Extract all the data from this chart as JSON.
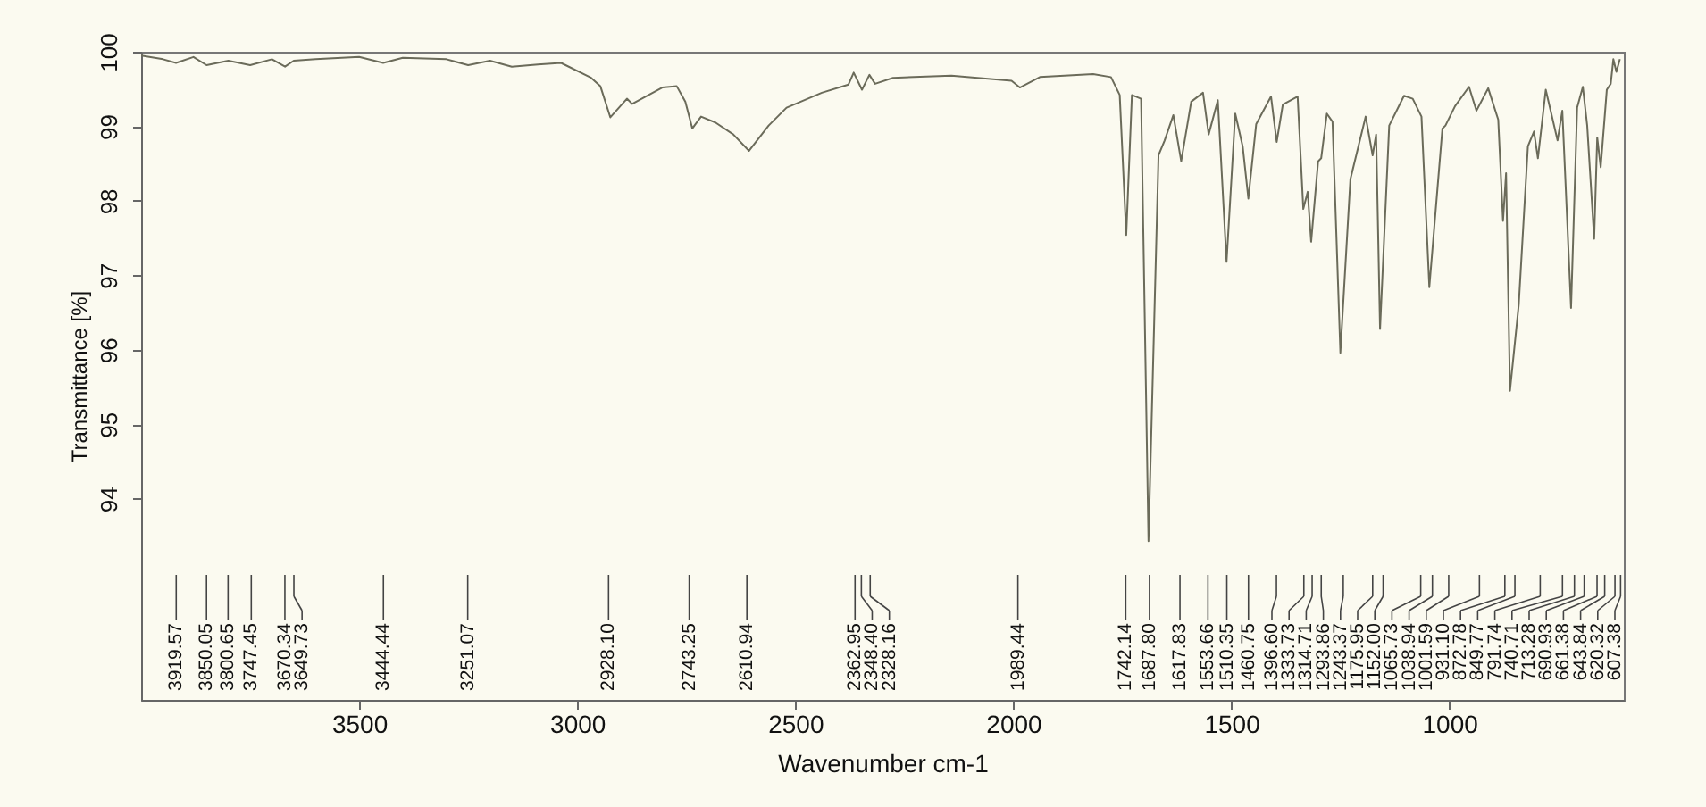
{
  "chart_data": {
    "type": "line",
    "xlabel": "Wavenumber cm-1",
    "ylabel": "Transmittance [%]",
    "xlim": [
      4000,
      600
    ],
    "ylim": [
      91.3,
      100
    ],
    "xticks": [
      3500,
      3000,
      2500,
      2000,
      1500,
      1000
    ],
    "yticks": [
      94,
      95,
      96,
      97,
      98,
      99,
      100
    ],
    "color": "#6b6b5a",
    "x": [
      4000,
      3950,
      3920,
      3880,
      3850,
      3800,
      3750,
      3700,
      3670,
      3650,
      3600,
      3500,
      3445,
      3400,
      3300,
      3250,
      3200,
      3150,
      3090,
      3037,
      2968,
      2947,
      2924,
      2886,
      2874,
      2805,
      2772,
      2752,
      2736,
      2716,
      2683,
      2642,
      2606,
      2561,
      2520,
      2439,
      2378,
      2366,
      2347,
      2330,
      2317,
      2276,
      2142,
      2004,
      1985,
      1939,
      1817,
      1776,
      1756,
      1741,
      1728,
      1707,
      1690,
      1667,
      1653,
      1633,
      1615,
      1592,
      1565,
      1552,
      1531,
      1511,
      1491,
      1474,
      1461,
      1443,
      1409,
      1396,
      1382,
      1348,
      1335,
      1325,
      1317,
      1301,
      1294,
      1281,
      1268,
      1250,
      1227,
      1192,
      1176,
      1168,
      1159,
      1138,
      1104,
      1084,
      1064,
      1046,
      1016,
      1009,
      987,
      955,
      938,
      911,
      888,
      877,
      870,
      861,
      841,
      820,
      806,
      797,
      779,
      752,
      741,
      721,
      707,
      694,
      684,
      668,
      661,
      653,
      639,
      630,
      624,
      617,
      609
    ],
    "values": [
      99.95,
      99.9,
      99.85,
      99.93,
      99.82,
      99.88,
      99.82,
      99.9,
      99.8,
      99.88,
      99.9,
      99.93,
      99.85,
      99.92,
      99.9,
      99.82,
      99.88,
      99.8,
      99.83,
      99.85,
      99.65,
      99.54,
      99.12,
      99.37,
      99.3,
      99.52,
      99.54,
      99.33,
      98.97,
      99.13,
      99.05,
      98.89,
      98.67,
      99.01,
      99.25,
      99.45,
      99.56,
      99.72,
      99.49,
      99.69,
      99.57,
      99.65,
      99.68,
      99.61,
      99.52,
      99.66,
      99.7,
      99.66,
      99.42,
      97.54,
      99.42,
      99.37,
      93.43,
      98.61,
      98.81,
      99.15,
      98.53,
      99.33,
      99.45,
      98.89,
      99.35,
      97.18,
      99.17,
      98.73,
      98.03,
      99.03,
      99.4,
      98.79,
      99.29,
      99.4,
      97.89,
      98.12,
      97.45,
      98.53,
      98.57,
      99.17,
      99.06,
      95.96,
      98.29,
      99.13,
      98.61,
      98.89,
      96.28,
      99.01,
      99.41,
      99.37,
      99.13,
      96.84,
      98.97,
      99.01,
      99.27,
      99.53,
      99.21,
      99.51,
      99.09,
      97.73,
      98.37,
      95.45,
      96.6,
      98.73,
      98.93,
      98.57,
      99.49,
      98.81,
      99.21,
      96.56,
      99.25,
      99.53,
      99.01,
      97.49,
      98.85,
      98.45,
      99.49,
      99.57,
      99.9,
      99.73,
      99.9
    ],
    "annotations": [
      {
        "text": "3919.57",
        "x": 3919.57
      },
      {
        "text": "3850.05",
        "x": 3850.05
      },
      {
        "text": "3800.65",
        "x": 3800.65
      },
      {
        "text": "3747.45",
        "x": 3747.45
      },
      {
        "text": "3670.34",
        "x": 3670.34
      },
      {
        "text": "3649.73",
        "x": 3649.73
      },
      {
        "text": "3444.44",
        "x": 3444.44
      },
      {
        "text": "3251.07",
        "x": 3251.07
      },
      {
        "text": "2928.10",
        "x": 2928.1
      },
      {
        "text": "2743.25",
        "x": 2743.25
      },
      {
        "text": "2610.94",
        "x": 2610.94
      },
      {
        "text": "2362.95",
        "x": 2362.95
      },
      {
        "text": "2348.40",
        "x": 2348.4
      },
      {
        "text": "2328.16",
        "x": 2328.16
      },
      {
        "text": "1989.44",
        "x": 1989.44
      },
      {
        "text": "1742.14",
        "x": 1742.14
      },
      {
        "text": "1687.80",
        "x": 1687.8
      },
      {
        "text": "1617.83",
        "x": 1617.83
      },
      {
        "text": "1553.66",
        "x": 1553.66
      },
      {
        "text": "1510.35",
        "x": 1510.35
      },
      {
        "text": "1460.75",
        "x": 1460.75
      },
      {
        "text": "1396.60",
        "x": 1396.6
      },
      {
        "text": "1333.73",
        "x": 1333.73
      },
      {
        "text": "1314.71",
        "x": 1314.71
      },
      {
        "text": "1293.86",
        "x": 1293.86
      },
      {
        "text": "1243.37",
        "x": 1243.37
      },
      {
        "text": "1175.95",
        "x": 1175.95
      },
      {
        "text": "1152.00",
        "x": 1152.0
      },
      {
        "text": "1065.73",
        "x": 1065.73
      },
      {
        "text": "1038.94",
        "x": 1038.94
      },
      {
        "text": "1001.59",
        "x": 1001.59
      },
      {
        "text": "931.10",
        "x": 931.1
      },
      {
        "text": "872.78",
        "x": 872.78
      },
      {
        "text": "849.77",
        "x": 849.77
      },
      {
        "text": "791.74",
        "x": 791.74
      },
      {
        "text": "740.71",
        "x": 740.71
      },
      {
        "text": "713.28",
        "x": 713.28
      },
      {
        "text": "690.93",
        "x": 690.93
      },
      {
        "text": "661.38",
        "x": 661.38
      },
      {
        "text": "643.84",
        "x": 643.84
      },
      {
        "text": "620.32",
        "x": 620.32
      },
      {
        "text": "607.38",
        "x": 607.38
      }
    ]
  }
}
